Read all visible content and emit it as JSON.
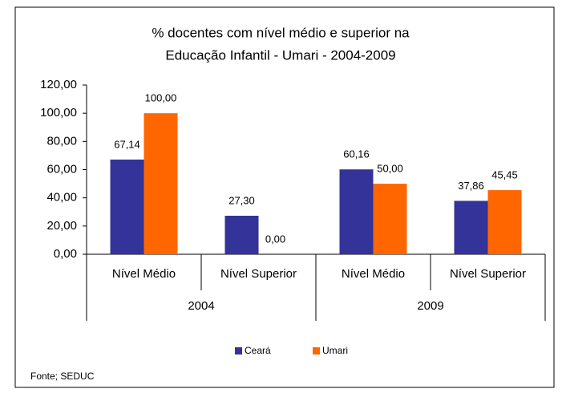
{
  "chart_data": {
    "type": "bar",
    "title": [
      "% docentes com nível médio e superior na",
      "Educação Infantil - Umari - 2004-2009"
    ],
    "categories": [
      "Nível Médio",
      "Nível Superior",
      "Nível Médio",
      "Nível Superior"
    ],
    "groups": [
      "2004",
      "2009"
    ],
    "series": [
      {
        "name": "Ceará",
        "color": "#333399",
        "values": [
          67.14,
          27.3,
          60.16,
          37.86
        ],
        "value_labels": [
          "67,14",
          "27,30",
          "60,16",
          "37,86"
        ]
      },
      {
        "name": "Umari",
        "color": "#ff6600",
        "values": [
          100.0,
          0.0,
          50.0,
          45.45
        ],
        "value_labels": [
          "100,00",
          "0,00",
          "50,00",
          "45,45"
        ]
      }
    ],
    "ylim": [
      0,
      120
    ],
    "yticks": [
      {
        "value": 0,
        "label": "0,00"
      },
      {
        "value": 20,
        "label": "20,00"
      },
      {
        "value": 40,
        "label": "40,00"
      },
      {
        "value": 60,
        "label": "60,00"
      },
      {
        "value": 80,
        "label": "80,00"
      },
      {
        "value": 100,
        "label": "100,00"
      },
      {
        "value": 120,
        "label": "120,00"
      }
    ],
    "legend": "bottom",
    "source": "Fonte; SEDUC"
  }
}
